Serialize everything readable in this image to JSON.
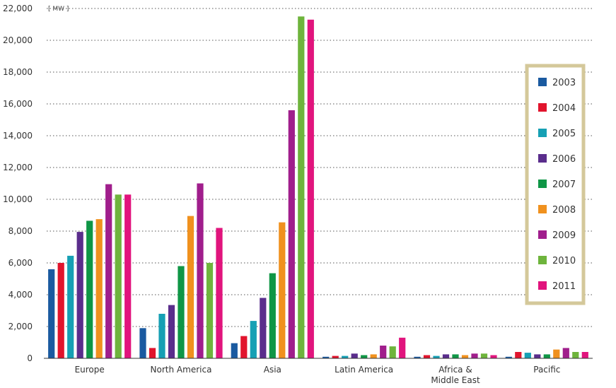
{
  "chart_data": {
    "type": "bar",
    "unit_label": "[ MW ]",
    "categories": [
      [
        "Europe"
      ],
      [
        "North America"
      ],
      [
        "Asia"
      ],
      [
        "Latin America"
      ],
      [
        "Africa &",
        "Middle East"
      ],
      [
        "Pacific"
      ]
    ],
    "series": [
      {
        "name": "2003",
        "color": "#1a5aa0",
        "values": [
          5600,
          1900,
          950,
          100,
          100,
          100
        ]
      },
      {
        "name": "2004",
        "color": "#e1142d",
        "values": [
          6000,
          650,
          1400,
          150,
          200,
          400
        ]
      },
      {
        "name": "2005",
        "color": "#16a0b4",
        "values": [
          6450,
          2800,
          2350,
          150,
          150,
          350
        ]
      },
      {
        "name": "2006",
        "color": "#5a2d8c",
        "values": [
          7950,
          3350,
          3800,
          300,
          250,
          250
        ]
      },
      {
        "name": "2007",
        "color": "#0f9646",
        "values": [
          8650,
          5800,
          5350,
          200,
          250,
          250
        ]
      },
      {
        "name": "2008",
        "color": "#f0911e",
        "values": [
          8750,
          8950,
          8550,
          250,
          200,
          550
        ]
      },
      {
        "name": "2009",
        "color": "#a01e8c",
        "values": [
          10950,
          11000,
          15600,
          800,
          300,
          650
        ]
      },
      {
        "name": "2010",
        "color": "#6eb43c",
        "values": [
          10300,
          6000,
          21500,
          750,
          300,
          400
        ]
      },
      {
        "name": "2011",
        "color": "#e1147d",
        "values": [
          10300,
          8200,
          21300,
          1300,
          200,
          400
        ]
      }
    ],
    "ylim": [
      0,
      22000
    ],
    "yticks": [
      0,
      2000,
      4000,
      6000,
      8000,
      10000,
      12000,
      14000,
      16000,
      18000,
      20000,
      22000
    ],
    "ytick_labels": [
      "0",
      "2,000",
      "4,000",
      "6,000",
      "8,000",
      "10,000",
      "12,000",
      "14,000",
      "16,000",
      "18,000",
      "20,000",
      "22,000"
    ],
    "grid": true,
    "legend_position": "right",
    "legend_border_color": "#d4c89a"
  }
}
